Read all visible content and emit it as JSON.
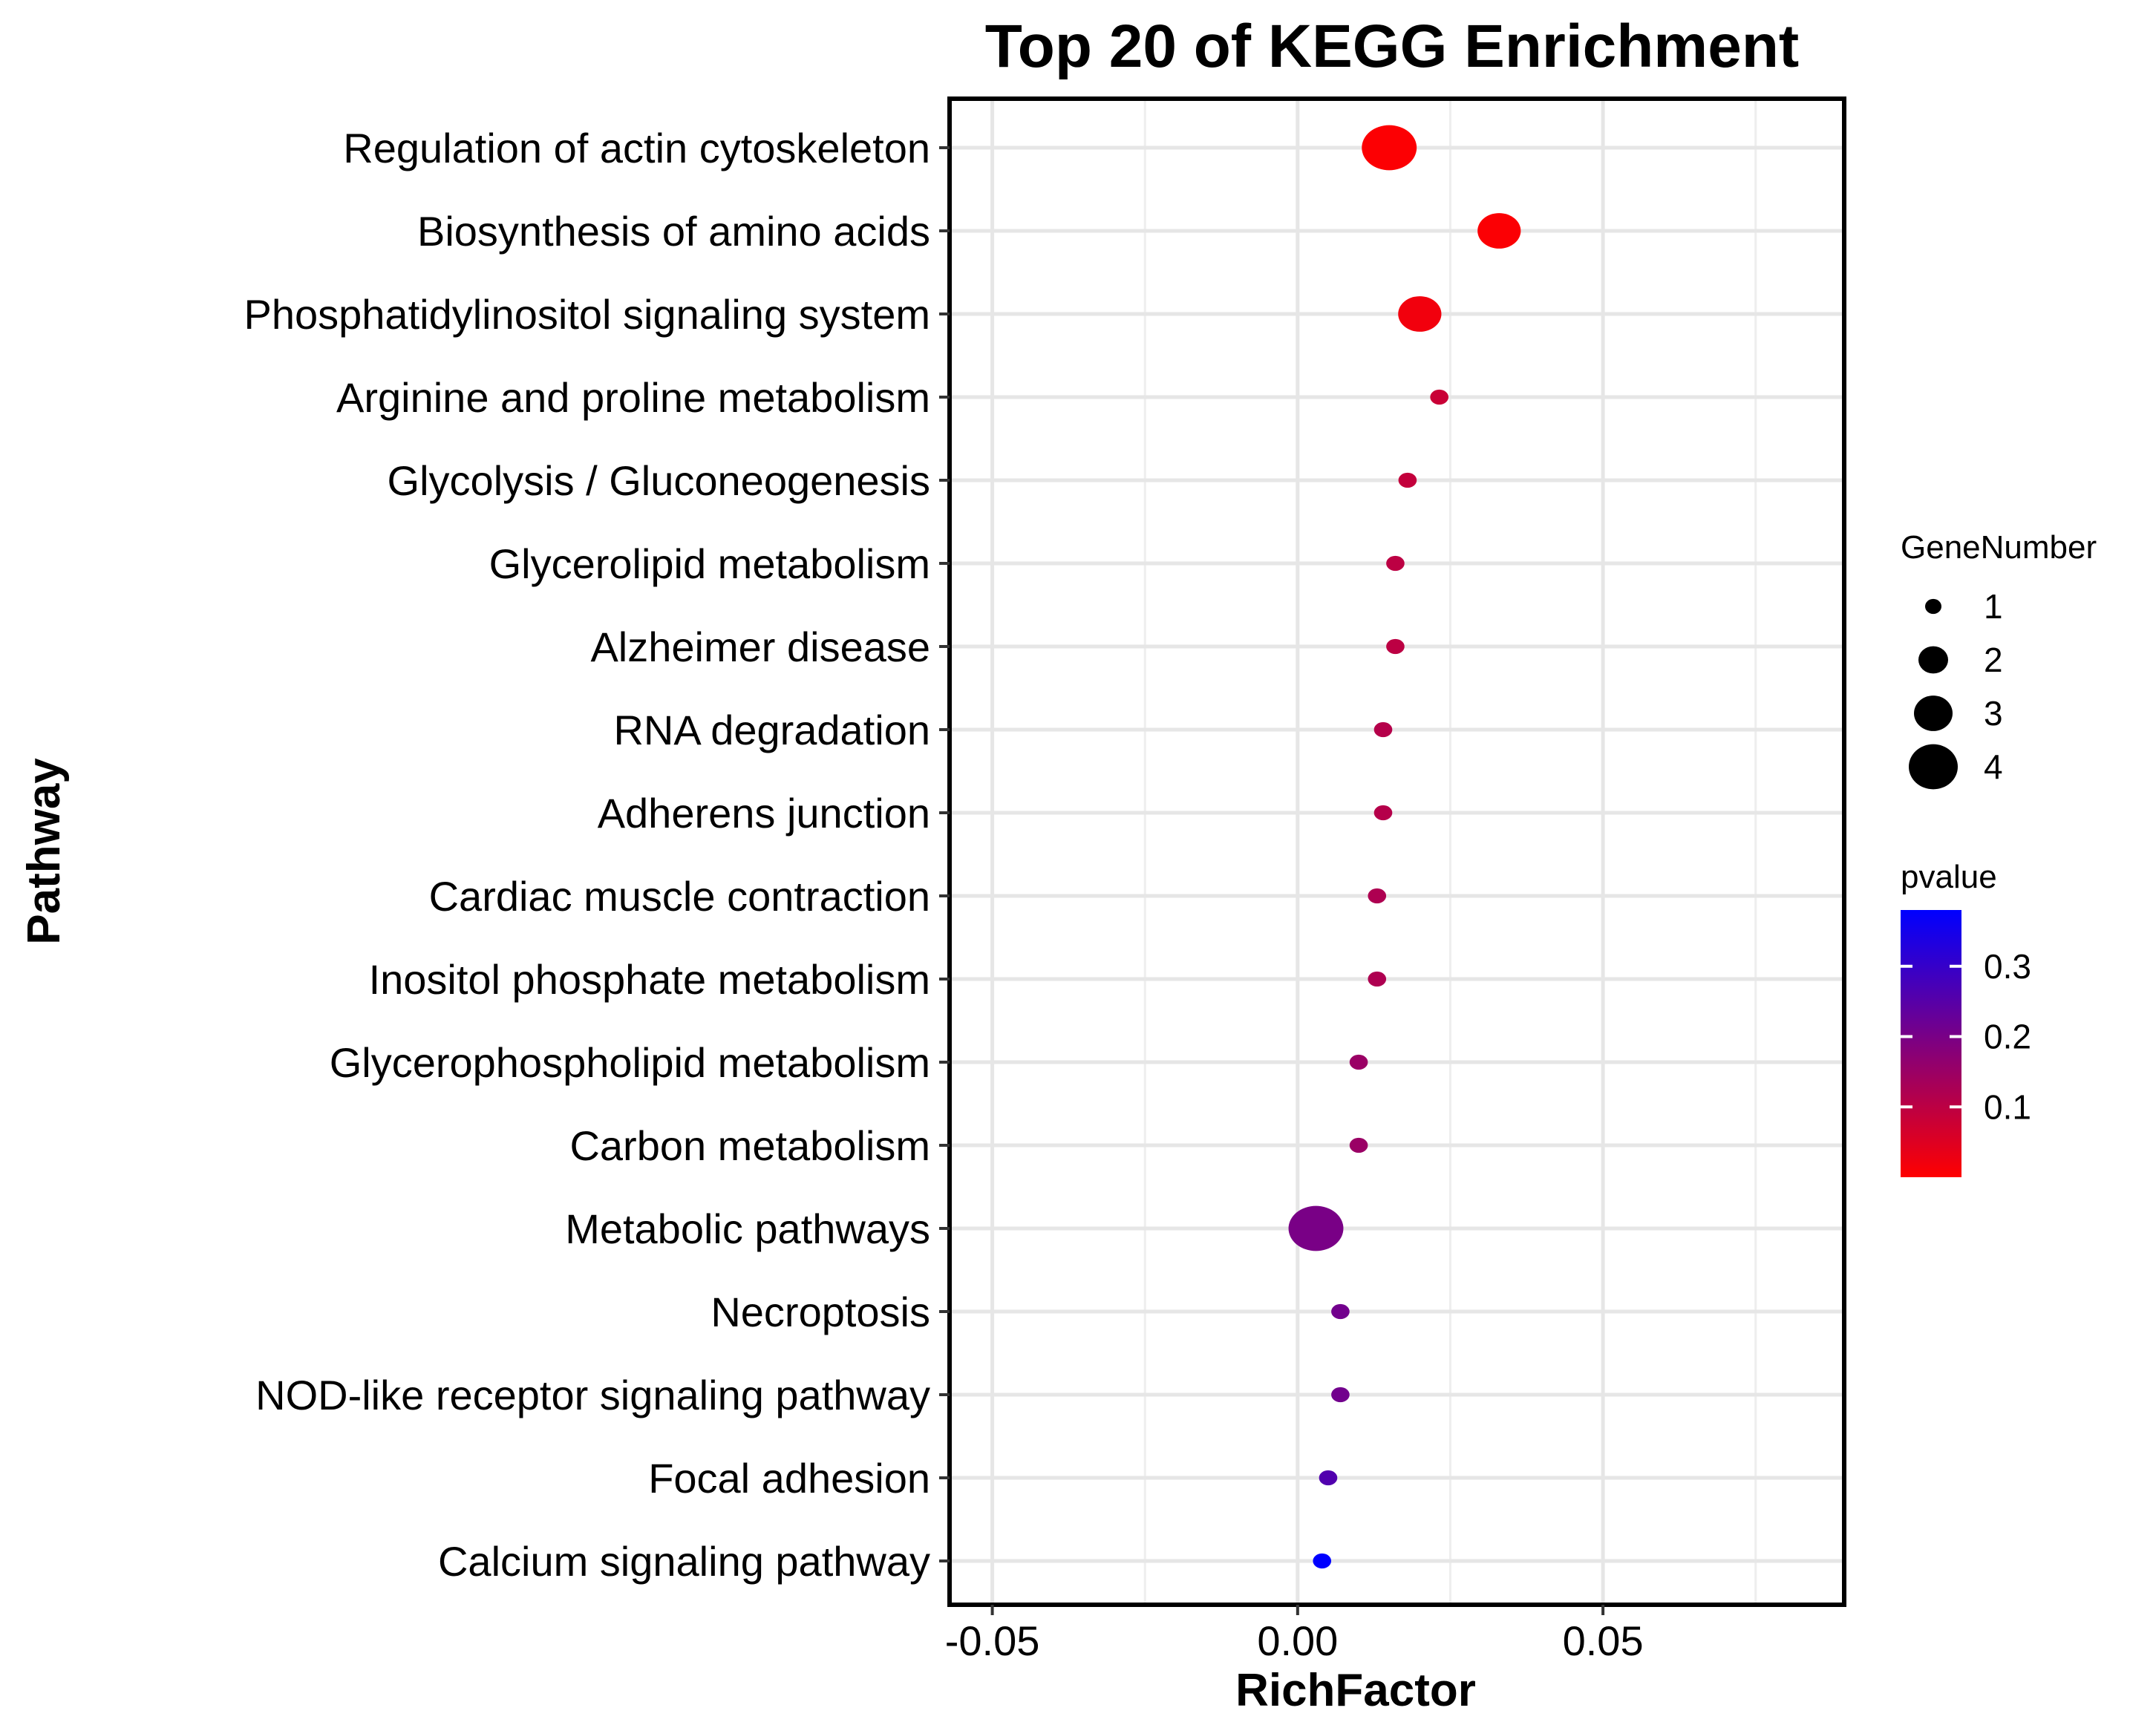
{
  "chart_data": {
    "type": "scatter",
    "title": "Top 20 of KEGG Enrichment",
    "xlabel": "RichFactor",
    "ylabel": "Pathway",
    "xlim": [
      -0.057,
      0.0895
    ],
    "x_ticks": [
      -0.05,
      0.0,
      0.05
    ],
    "x_tick_labels": [
      "-0.05",
      "0.00",
      "0.05"
    ],
    "grid": true,
    "size_legend": {
      "title": "GeneNumber",
      "values": [
        1,
        2,
        3,
        4
      ],
      "labels": [
        "1",
        "2",
        "3",
        "4"
      ]
    },
    "color_legend": {
      "title": "pvalue",
      "range": [
        0.0,
        0.38
      ],
      "low_color": "#ff0000",
      "high_color": "#0000ff",
      "ticks": [
        0.1,
        0.2,
        0.3
      ],
      "tick_labels": [
        "0.1",
        "0.2",
        "0.3"
      ]
    },
    "points": [
      {
        "pathway": "Regulation of actin cytoskeleton",
        "rich_factor": 0.015,
        "gene_number": 4,
        "pvalue": 0.005
      },
      {
        "pathway": "Biosynthesis of amino acids",
        "rich_factor": 0.033,
        "gene_number": 3,
        "pvalue": 0.006
      },
      {
        "pathway": "Phosphatidylinositol signaling system",
        "rich_factor": 0.02,
        "gene_number": 3,
        "pvalue": 0.02
      },
      {
        "pathway": "Arginine and proline metabolism",
        "rich_factor": 0.0232,
        "gene_number": 1,
        "pvalue": 0.08
      },
      {
        "pathway": "Glycolysis / Gluconeogenesis",
        "rich_factor": 0.018,
        "gene_number": 1,
        "pvalue": 0.09
      },
      {
        "pathway": "Glycerolipid metabolism",
        "rich_factor": 0.016,
        "gene_number": 1,
        "pvalue": 0.1
      },
      {
        "pathway": "Alzheimer disease",
        "rich_factor": 0.016,
        "gene_number": 1,
        "pvalue": 0.1
      },
      {
        "pathway": "RNA degradation",
        "rich_factor": 0.014,
        "gene_number": 1,
        "pvalue": 0.11
      },
      {
        "pathway": "Adherens junction",
        "rich_factor": 0.014,
        "gene_number": 1,
        "pvalue": 0.11
      },
      {
        "pathway": "Cardiac muscle contraction",
        "rich_factor": 0.013,
        "gene_number": 1,
        "pvalue": 0.12
      },
      {
        "pathway": "Inositol phosphate metabolism",
        "rich_factor": 0.013,
        "gene_number": 1,
        "pvalue": 0.12
      },
      {
        "pathway": "Glycerophospholipid metabolism",
        "rich_factor": 0.01,
        "gene_number": 1,
        "pvalue": 0.15
      },
      {
        "pathway": "Carbon metabolism",
        "rich_factor": 0.01,
        "gene_number": 1,
        "pvalue": 0.15
      },
      {
        "pathway": "Metabolic pathways",
        "rich_factor": 0.003,
        "gene_number": 4,
        "pvalue": 0.2
      },
      {
        "pathway": "Necroptosis",
        "rich_factor": 0.007,
        "gene_number": 1,
        "pvalue": 0.21
      },
      {
        "pathway": "NOD-like receptor signaling pathway",
        "rich_factor": 0.007,
        "gene_number": 1,
        "pvalue": 0.21
      },
      {
        "pathway": "Focal adhesion",
        "rich_factor": 0.005,
        "gene_number": 1,
        "pvalue": 0.26
      },
      {
        "pathway": "Calcium signaling pathway",
        "rich_factor": 0.004,
        "gene_number": 1,
        "pvalue": 0.38
      }
    ]
  }
}
